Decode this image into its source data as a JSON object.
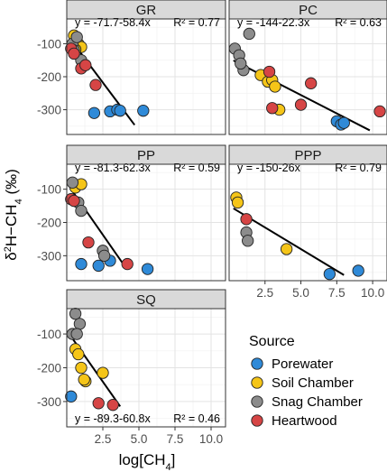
{
  "chart_data": {
    "type": "scatter",
    "title": "",
    "xlabel": "log[CH4]",
    "ylabel": "δ2H-CH4 (‰)",
    "x_ticks": [
      "2.5",
      "5.0",
      "7.5",
      "10.0"
    ],
    "y_ticks": [
      "-100",
      "-200",
      "-300"
    ],
    "xlim": [
      0,
      11
    ],
    "ylim": [
      -375,
      -25
    ],
    "grid": true,
    "legend": {
      "title": "Source",
      "placement": "bottom-right",
      "entries": [
        {
          "name": "Porewater",
          "color": "#2f8ad8"
        },
        {
          "name": "Soil Chamber",
          "color": "#f5c518"
        },
        {
          "name": "Snag Chamber",
          "color": "#8c8c8c"
        },
        {
          "name": "Heartwood",
          "color": "#d64545"
        }
      ]
    },
    "panels": [
      {
        "id": "gr",
        "title": "GR",
        "equation": "y = -71.7-58.4x",
        "r2": "R² = 0.77",
        "fit": {
          "intercept": -71.7,
          "slope": -58.4,
          "x_range": [
            0.3,
            4.7
          ]
        },
        "series": [
          {
            "name": "Porewater",
            "points": [
              [
                1.9,
                -310
              ],
              [
                3.0,
                -305
              ],
              [
                3.5,
                -300
              ],
              [
                3.7,
                -303
              ],
              [
                5.3,
                -303
              ]
            ]
          },
          {
            "name": "Soil Chamber",
            "points": [
              [
                0.5,
                -75
              ],
              [
                0.8,
                -100
              ],
              [
                1.0,
                -110
              ],
              [
                0.6,
                -118
              ]
            ]
          },
          {
            "name": "Snag Chamber",
            "points": [
              [
                0.4,
                -100
              ],
              [
                0.7,
                -80
              ],
              [
                1.0,
                -150
              ],
              [
                0.5,
                -120
              ]
            ]
          },
          {
            "name": "Heartwood",
            "points": [
              [
                0.3,
                -115
              ],
              [
                0.5,
                -130
              ],
              [
                1.0,
                -175
              ],
              [
                1.3,
                -165
              ],
              [
                2.0,
                -225
              ]
            ]
          }
        ]
      },
      {
        "id": "pc",
        "title": "PC",
        "equation": "y = -144-22.3x",
        "r2": "R² = 0.63",
        "fit": {
          "intercept": -144,
          "slope": -22.3,
          "x_range": [
            0.3,
            9.8
          ]
        },
        "series": [
          {
            "name": "Porewater",
            "points": [
              [
                7.5,
                -335
              ],
              [
                7.8,
                -345
              ],
              [
                8.0,
                -340
              ]
            ]
          },
          {
            "name": "Soil Chamber",
            "points": [
              [
                2.2,
                -195
              ],
              [
                2.7,
                -215
              ],
              [
                3.0,
                -210
              ],
              [
                3.2,
                -230
              ],
              [
                3.5,
                -300
              ]
            ]
          },
          {
            "name": "Snag Chamber",
            "points": [
              [
                0.4,
                -115
              ],
              [
                0.7,
                -135
              ],
              [
                1.0,
                -180
              ],
              [
                0.8,
                -160
              ],
              [
                1.4,
                -70
              ]
            ]
          },
          {
            "name": "Heartwood",
            "points": [
              [
                2.8,
                -185
              ],
              [
                3.0,
                -295
              ],
              [
                5.0,
                -285
              ],
              [
                5.7,
                -220
              ],
              [
                10.5,
                -305
              ]
            ]
          }
        ]
      },
      {
        "id": "pp",
        "title": "PP",
        "equation": "y = -81.3-62.3x",
        "r2": "R² = 0.59",
        "fit": {
          "intercept": -81.3,
          "slope": -62.3,
          "x_range": [
            0.3,
            4.0
          ]
        },
        "series": [
          {
            "name": "Porewater",
            "points": [
              [
                1.0,
                -325
              ],
              [
                2.2,
                -330
              ],
              [
                3.0,
                -315
              ],
              [
                5.6,
                -340
              ]
            ]
          },
          {
            "name": "Soil Chamber",
            "points": [
              [
                0.6,
                -95
              ],
              [
                1.0,
                -85
              ]
            ]
          },
          {
            "name": "Snag Chamber",
            "points": [
              [
                0.4,
                -80
              ],
              [
                0.8,
                -140
              ],
              [
                1.0,
                -165
              ],
              [
                2.5,
                -285
              ],
              [
                2.6,
                -300
              ]
            ]
          },
          {
            "name": "Heartwood",
            "points": [
              [
                0.3,
                -130
              ],
              [
                0.5,
                -135
              ],
              [
                1.5,
                -260
              ],
              [
                4.2,
                -325
              ]
            ]
          }
        ]
      },
      {
        "id": "ppp",
        "title": "PPP",
        "equation": "y = -150-26x",
        "r2": "R² = 0.79",
        "fit": {
          "intercept": -150,
          "slope": -26,
          "x_range": [
            0.3,
            8.0
          ]
        },
        "series": [
          {
            "name": "Porewater",
            "points": [
              [
                7.0,
                -355
              ],
              [
                9.0,
                -345
              ]
            ]
          },
          {
            "name": "Soil Chamber",
            "points": [
              [
                0.5,
                -125
              ],
              [
                0.6,
                -140
              ],
              [
                4.0,
                -280
              ]
            ]
          },
          {
            "name": "Snag Chamber",
            "points": [
              [
                1.2,
                -230
              ],
              [
                1.3,
                -255
              ]
            ]
          },
          {
            "name": "Heartwood",
            "points": [
              [
                1.2,
                -190
              ]
            ]
          }
        ]
      },
      {
        "id": "sq",
        "title": "SQ",
        "equation": "y = -89.3-60.8x",
        "r2": "R² = 0.46",
        "fit": {
          "intercept": -89.3,
          "slope": -60.8,
          "x_range": [
            0.3,
            3.7
          ]
        },
        "series": [
          {
            "name": "Porewater",
            "points": [
              [
                0.3,
                -285
              ]
            ]
          },
          {
            "name": "Soil Chamber",
            "points": [
              [
                0.6,
                -145
              ],
              [
                0.8,
                -160
              ],
              [
                1.0,
                -200
              ],
              [
                1.3,
                -240
              ],
              [
                2.5,
                -215
              ],
              [
                1.2,
                -235
              ]
            ]
          },
          {
            "name": "Snag Chamber",
            "points": [
              [
                0.4,
                -100
              ],
              [
                0.6,
                -40
              ],
              [
                0.9,
                -70
              ],
              [
                0.7,
                -100
              ]
            ]
          },
          {
            "name": "Heartwood",
            "points": [
              [
                2.2,
                -305
              ],
              [
                3.2,
                -310
              ]
            ]
          }
        ]
      }
    ]
  }
}
